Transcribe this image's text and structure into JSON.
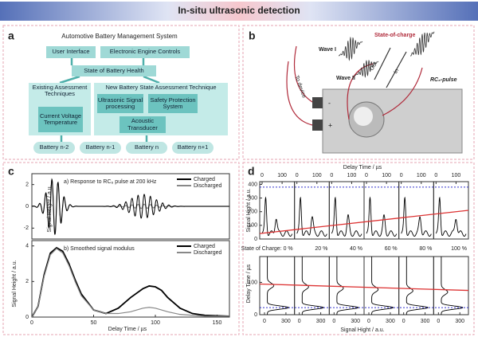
{
  "header": {
    "title": "In-situ ultrasonic detection"
  },
  "panel_a": {
    "label": "a",
    "title": "Automotive Battery Management System",
    "boxes": [
      "User Interface",
      "Electronic Engine Controls",
      "State of Battery Health",
      "Existing Assessment Techniques",
      "New Battery State Assessment Technique",
      "Current Voltage Temperature",
      "Ultrasonic Signal processing",
      "Safety Protection System",
      "Acoustic Transducer",
      "Battery n-2",
      "Battery n-1",
      "Battery n",
      "Battery n+1"
    ]
  },
  "panel_b": {
    "label": "b",
    "labels": [
      "State-of-charge",
      "Wave I",
      "Wave II",
      "Out",
      "In",
      "RC₆-pulse",
      "To device",
      "-",
      "+"
    ]
  },
  "panel_c": {
    "label": "c",
    "xlabel": "Delay Time / µs",
    "ylabel": "Signal Height / a.u.",
    "top": {
      "caption": "a) Response to RC₆ pulse at 200 kHz",
      "yticks": [
        -2,
        0,
        2
      ],
      "ylim": [
        -3,
        3
      ]
    },
    "bottom": {
      "caption": "b) Smoothed signal modulus",
      "ylim": [
        0,
        4.3
      ],
      "yticks": [
        0,
        2,
        4
      ],
      "xlim": [
        0,
        160
      ],
      "xticks": [
        0,
        50,
        100,
        150
      ],
      "x": [
        0,
        5,
        10,
        15,
        20,
        25,
        30,
        35,
        40,
        50,
        60,
        70,
        80,
        90,
        95,
        100,
        105,
        110,
        120,
        130,
        140,
        160
      ],
      "series": [
        {
          "name": "Charged",
          "color": "#000000",
          "values": [
            0,
            0.6,
            2.4,
            3.6,
            3.9,
            3.7,
            3.0,
            2.1,
            1.3,
            0.4,
            0.2,
            0.5,
            1.1,
            1.6,
            1.75,
            1.7,
            1.5,
            1.1,
            0.5,
            0.2,
            0.1,
            0.05
          ]
        },
        {
          "name": "Discharged",
          "color": "#888888",
          "values": [
            0,
            0.6,
            2.3,
            3.5,
            3.85,
            3.6,
            2.9,
            2.0,
            1.2,
            0.4,
            0.2,
            0.2,
            0.3,
            0.5,
            0.55,
            0.5,
            0.4,
            0.3,
            0.15,
            0.1,
            0.05,
            0.05
          ]
        }
      ]
    }
  },
  "panel_d": {
    "label": "d",
    "top_xlabel": "Delay Time / µs",
    "top_xticks": [
      0,
      100
    ],
    "top_yticks": [
      0,
      100,
      200,
      300,
      400
    ],
    "top_ylabel": "Signal Hight / a.u.",
    "states": [
      "State of Charge: 0 %",
      "20 %",
      "40 %",
      "60 %",
      "80 %",
      "100 %"
    ],
    "bottom_yticks": [
      0,
      100
    ],
    "bottom_ylabel": "Delay Time / µs",
    "bottom_xticks": [
      0,
      300
    ],
    "bottom_xlabel": "Signal Hight / a.u."
  }
}
